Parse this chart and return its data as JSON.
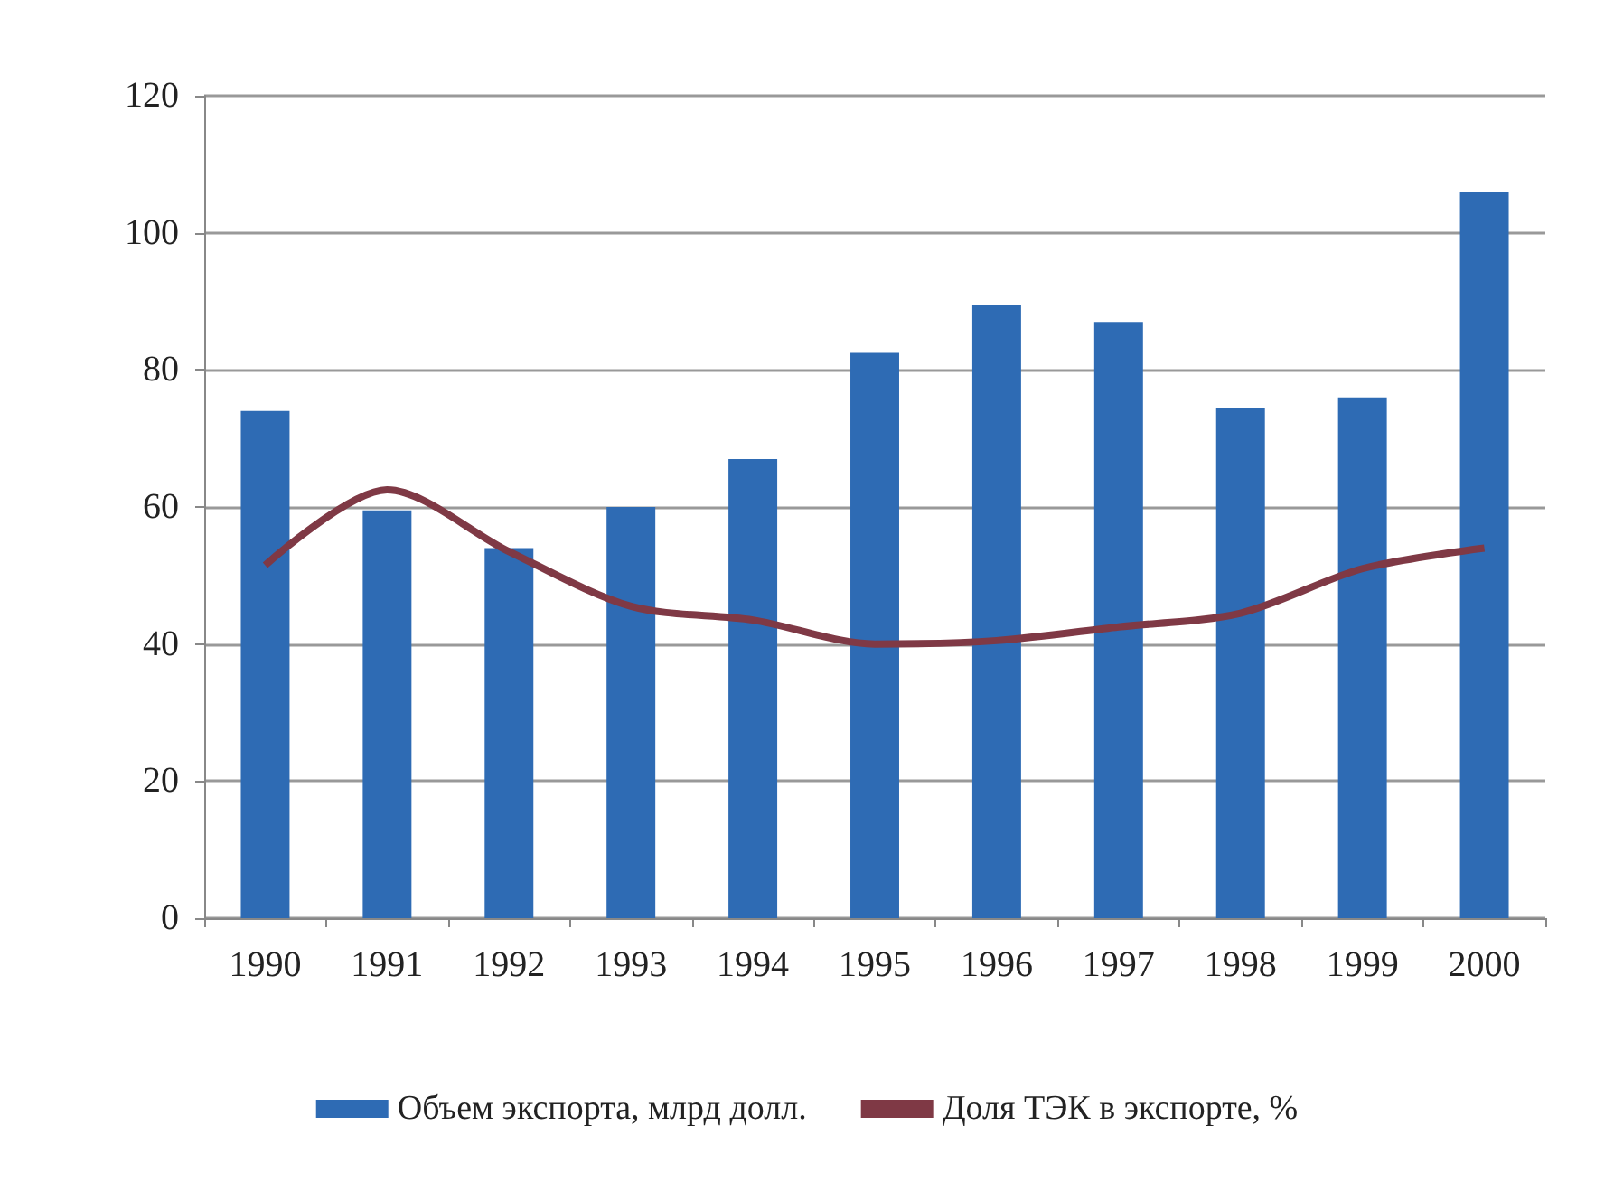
{
  "chart_data": {
    "type": "bar",
    "categories": [
      "1990",
      "1991",
      "1992",
      "1993",
      "1994",
      "1995",
      "1996",
      "1997",
      "1998",
      "1999",
      "2000"
    ],
    "series": [
      {
        "name": "Объем экспорта, млрд долл.",
        "color": "#2e6bb4",
        "values": [
          74,
          59.5,
          54,
          60,
          67,
          82.5,
          89.5,
          87,
          74.5,
          76,
          106
        ]
      },
      {
        "name": "Доля ТЭК в экспорте, %",
        "type": "line",
        "color": "#7f3945",
        "values": [
          51.5,
          62.5,
          53.5,
          45.5,
          43.5,
          40,
          40.5,
          42.5,
          44.5,
          51,
          54
        ]
      }
    ],
    "ylim": [
      0,
      120
    ],
    "yticks": [
      0,
      20,
      40,
      60,
      80,
      100,
      120
    ],
    "grid": "y",
    "legend": "bottom",
    "marker": "none"
  }
}
